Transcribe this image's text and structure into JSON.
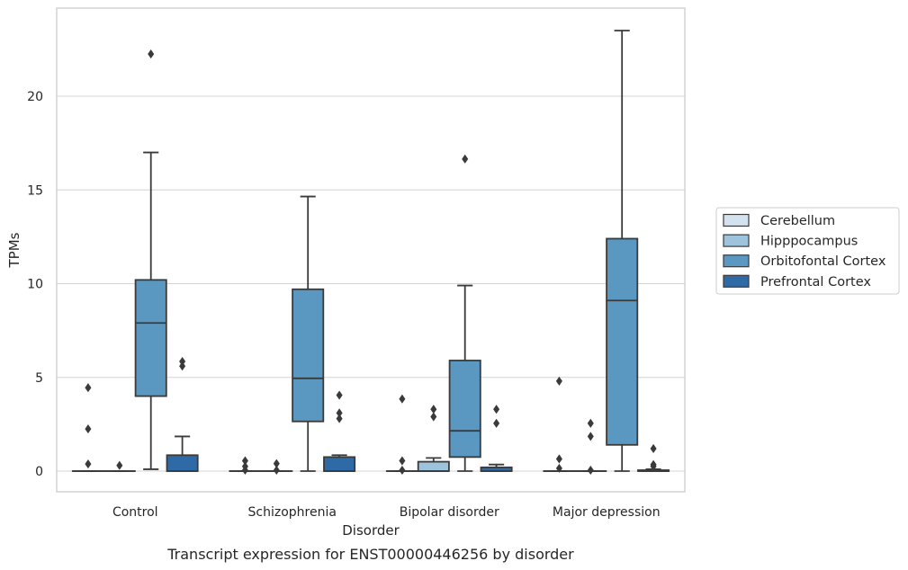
{
  "chart_data": {
    "type": "box",
    "title": "",
    "caption": "Transcript expression for ENST00000446256 by disorder",
    "xlabel": "Disorder",
    "ylabel": "TPMs",
    "ylim": [
      -1.1,
      24.5
    ],
    "yticks": [
      0,
      5,
      10,
      15,
      20
    ],
    "grid": "horizontal",
    "legend_position": "right",
    "categories": [
      "Control",
      "Schizophrenia",
      "Bipolar disorder",
      "Major depression"
    ],
    "series": [
      {
        "name": "Cerebellum",
        "color": "#d4e2ef",
        "boxes": [
          {
            "q1": 0,
            "median": 0,
            "q3": 0,
            "whisker_low": 0,
            "whisker_high": 0,
            "outliers": [
              4.45,
              2.25,
              0.38
            ]
          },
          {
            "q1": 0,
            "median": 0,
            "q3": 0,
            "whisker_low": 0,
            "whisker_high": 0,
            "outliers": [
              0.55,
              0.25,
              0.05
            ]
          },
          {
            "q1": 0,
            "median": 0,
            "q3": 0,
            "whisker_low": 0,
            "whisker_high": 0,
            "outliers": [
              3.85,
              0.55,
              0.05
            ]
          },
          {
            "q1": 0,
            "median": 0,
            "q3": 0,
            "whisker_low": 0,
            "whisker_high": 0,
            "outliers": [
              4.8,
              0.65,
              0.15
            ]
          }
        ]
      },
      {
        "name": "Hipppocampus",
        "color": "#9dc3dd",
        "boxes": [
          {
            "q1": 0,
            "median": 0,
            "q3": 0,
            "whisker_low": 0,
            "whisker_high": 0,
            "outliers": [
              0.3
            ]
          },
          {
            "q1": 0,
            "median": 0,
            "q3": 0,
            "whisker_low": 0,
            "whisker_high": 0,
            "outliers": [
              0.4,
              0.05
            ]
          },
          {
            "q1": 0,
            "median": 0,
            "q3": 0.5,
            "whisker_low": 0,
            "whisker_high": 0.7,
            "outliers": [
              3.3,
              2.9
            ]
          },
          {
            "q1": 0,
            "median": 0,
            "q3": 0,
            "whisker_low": 0,
            "whisker_high": 0,
            "outliers": [
              2.55,
              1.85,
              0.05
            ]
          }
        ]
      },
      {
        "name": "Orbitofontal Cortex",
        "color": "#5a98c2",
        "boxes": [
          {
            "q1": 4.0,
            "median": 7.9,
            "q3": 10.2,
            "whisker_low": 0.1,
            "whisker_high": 17.0,
            "outliers": [
              22.25
            ]
          },
          {
            "q1": 2.65,
            "median": 4.95,
            "q3": 9.7,
            "whisker_low": 0,
            "whisker_high": 14.65,
            "outliers": []
          },
          {
            "q1": 0.75,
            "median": 2.15,
            "q3": 5.9,
            "whisker_low": 0,
            "whisker_high": 9.9,
            "outliers": [
              16.65
            ]
          },
          {
            "q1": 1.4,
            "median": 9.1,
            "q3": 12.4,
            "whisker_low": 0,
            "whisker_high": 23.5,
            "outliers": []
          }
        ]
      },
      {
        "name": "Prefrontal Cortex",
        "color": "#2e6aa6",
        "boxes": [
          {
            "q1": 0,
            "median": 0,
            "q3": 0.85,
            "whisker_low": 0,
            "whisker_high": 1.85,
            "outliers": [
              5.85,
              5.6
            ]
          },
          {
            "q1": 0,
            "median": 0,
            "q3": 0.75,
            "whisker_low": 0,
            "whisker_high": 0.85,
            "outliers": [
              4.05,
              3.1,
              2.8
            ]
          },
          {
            "q1": 0,
            "median": 0,
            "q3": 0.2,
            "whisker_low": 0,
            "whisker_high": 0.35,
            "outliers": [
              3.3,
              2.55
            ]
          },
          {
            "q1": 0,
            "median": 0,
            "q3": 0.05,
            "whisker_low": 0,
            "whisker_high": 0.1,
            "outliers": [
              1.2,
              0.35,
              0.25
            ]
          }
        ]
      }
    ]
  }
}
